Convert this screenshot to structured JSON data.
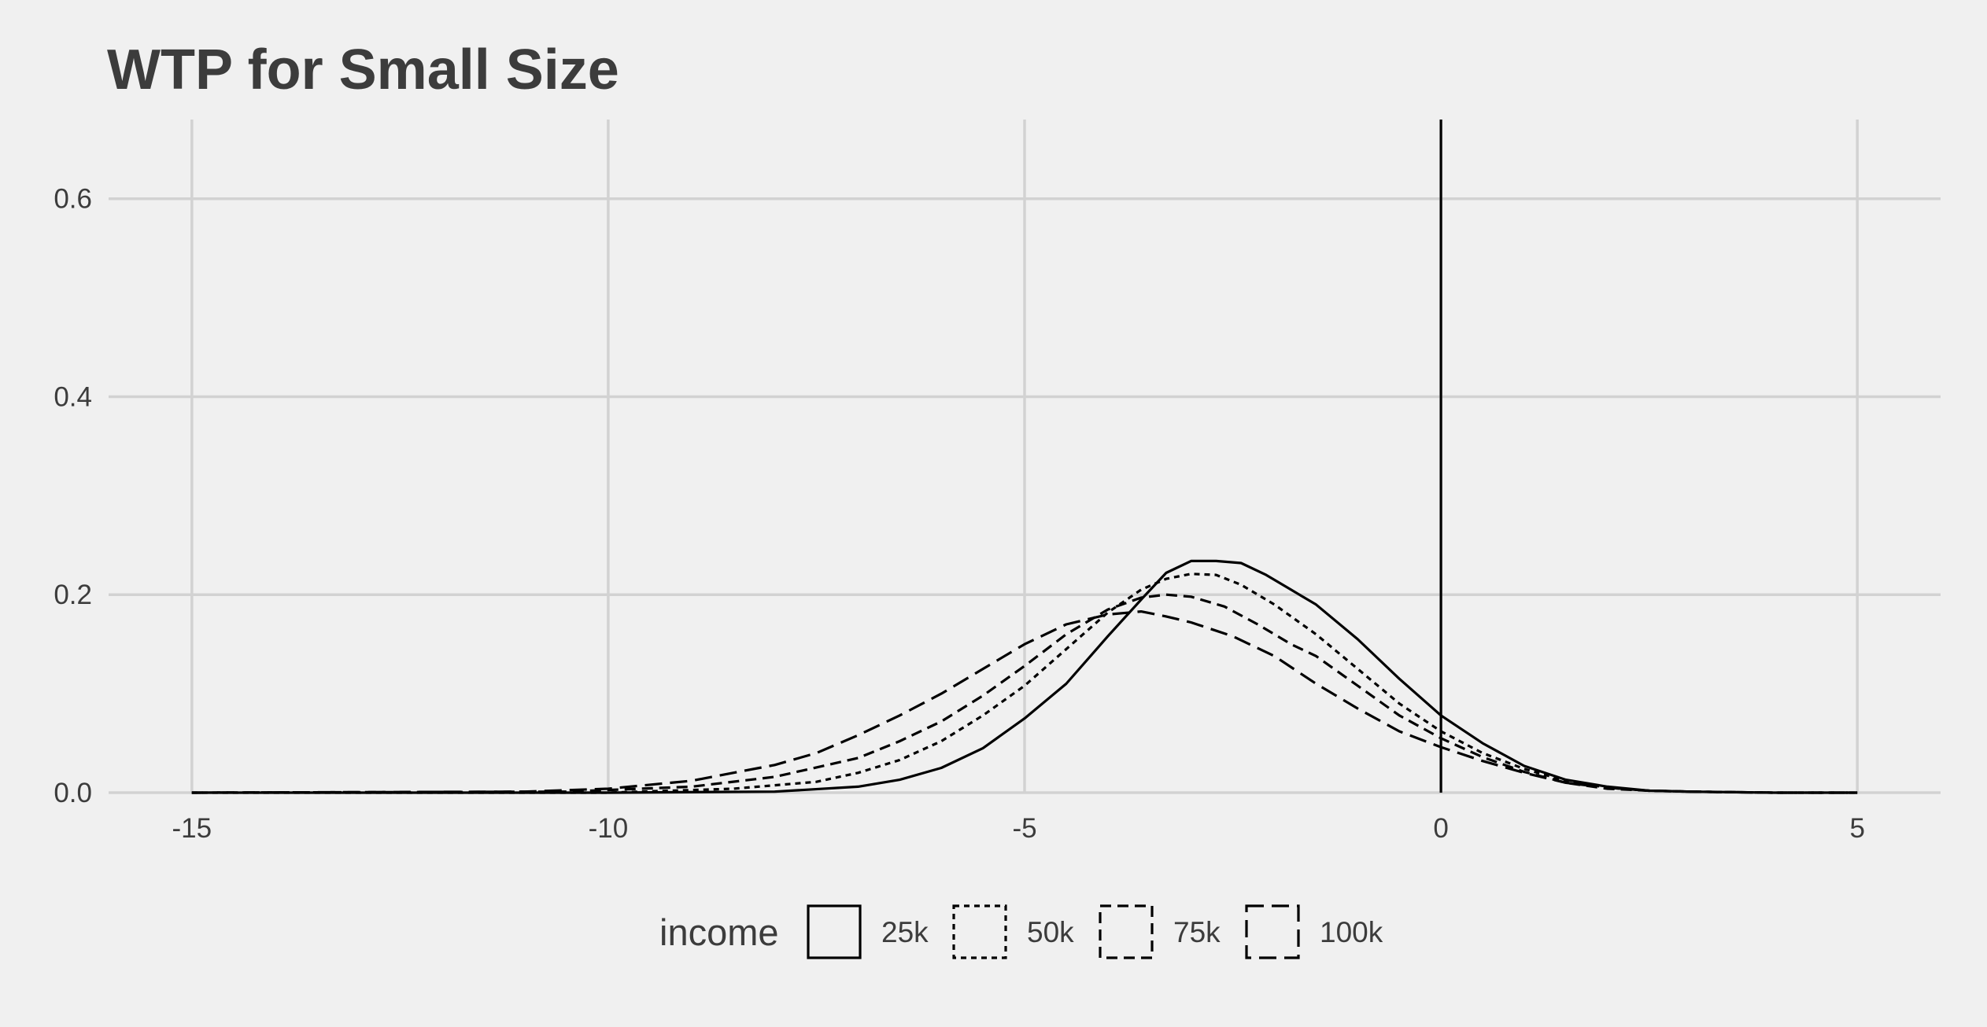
{
  "chart_data": {
    "type": "area",
    "title": "WTP for Small Size",
    "xlabel": "",
    "ylabel": "",
    "xlim": [
      -16,
      6
    ],
    "ylim": [
      0,
      0.68
    ],
    "x_ticks": [
      -15,
      -10,
      -5,
      0,
      5
    ],
    "x_tick_labels": [
      "-15",
      "-10",
      "-5",
      "0",
      "5"
    ],
    "y_ticks": [
      0.0,
      0.2,
      0.4,
      0.6
    ],
    "y_tick_labels": [
      "0.0",
      "0.2",
      "0.4",
      "0.6"
    ],
    "grid": true,
    "vline_at": 0,
    "legend": {
      "title": "income",
      "position": "bottom"
    },
    "colors": {
      "background": "#f0f0f0",
      "grid": "#d2d2d2",
      "line": "#000000",
      "text": "#3c3c3c"
    },
    "series": [
      {
        "name": "25k",
        "linetype": "solid",
        "x": [
          -15,
          -10,
          -8,
          -7,
          -6.5,
          -6,
          -5.5,
          -5,
          -4.5,
          -4,
          -3.6,
          -3.3,
          -3,
          -2.7,
          -2.4,
          -2.1,
          -1.8,
          -1.5,
          -1,
          -0.5,
          0,
          0.5,
          1,
          1.5,
          2,
          2.5,
          3,
          4,
          5
        ],
        "values": [
          0,
          0,
          0.001,
          0.006,
          0.013,
          0.025,
          0.045,
          0.075,
          0.11,
          0.158,
          0.195,
          0.222,
          0.234,
          0.234,
          0.232,
          0.22,
          0.205,
          0.19,
          0.155,
          0.115,
          0.078,
          0.05,
          0.027,
          0.013,
          0.006,
          0.002,
          0.001,
          0,
          0
        ]
      },
      {
        "name": "50k",
        "linetype": "dotted",
        "x": [
          -15,
          -10,
          -8.5,
          -7.5,
          -7,
          -6.5,
          -6,
          -5.5,
          -5,
          -4.5,
          -4,
          -3.6,
          -3.3,
          -3,
          -2.7,
          -2.4,
          -2,
          -1.5,
          -1,
          -0.5,
          0,
          0.5,
          1,
          1.5,
          2,
          2.5,
          3,
          4,
          5
        ],
        "values": [
          0,
          0,
          0.004,
          0.011,
          0.02,
          0.033,
          0.052,
          0.078,
          0.108,
          0.145,
          0.182,
          0.205,
          0.216,
          0.221,
          0.22,
          0.21,
          0.19,
          0.16,
          0.125,
          0.09,
          0.062,
          0.04,
          0.024,
          0.012,
          0.005,
          0.002,
          0.001,
          0,
          0
        ]
      },
      {
        "name": "75k",
        "linetype": "dashed",
        "x": [
          -15,
          -10.5,
          -9,
          -8,
          -7,
          -6.5,
          -6,
          -5.5,
          -5,
          -4.5,
          -4,
          -3.6,
          -3.3,
          -3,
          -2.6,
          -2.2,
          -1.8,
          -1.5,
          -1,
          -0.5,
          0,
          0.5,
          1,
          1.5,
          2,
          2.5,
          3,
          4,
          5
        ],
        "values": [
          0,
          0.001,
          0.006,
          0.016,
          0.035,
          0.052,
          0.072,
          0.098,
          0.128,
          0.16,
          0.185,
          0.197,
          0.2,
          0.198,
          0.188,
          0.17,
          0.15,
          0.138,
          0.108,
          0.078,
          0.055,
          0.036,
          0.021,
          0.01,
          0.004,
          0.002,
          0.001,
          0,
          0
        ]
      },
      {
        "name": "100k",
        "linetype": "longdash",
        "x": [
          -15,
          -11,
          -10,
          -9,
          -8,
          -7.5,
          -7,
          -6.5,
          -6,
          -5.5,
          -5,
          -4.5,
          -4,
          -3.6,
          -3.3,
          -3,
          -2.5,
          -2,
          -1.5,
          -1,
          -0.5,
          0,
          0.5,
          1,
          1.5,
          2,
          2.5,
          3,
          4,
          5
        ],
        "values": [
          0,
          0.001,
          0.004,
          0.012,
          0.028,
          0.04,
          0.058,
          0.078,
          0.1,
          0.125,
          0.15,
          0.17,
          0.18,
          0.183,
          0.178,
          0.172,
          0.158,
          0.138,
          0.11,
          0.085,
          0.062,
          0.046,
          0.032,
          0.02,
          0.01,
          0.005,
          0.002,
          0.001,
          0,
          0
        ]
      }
    ]
  }
}
